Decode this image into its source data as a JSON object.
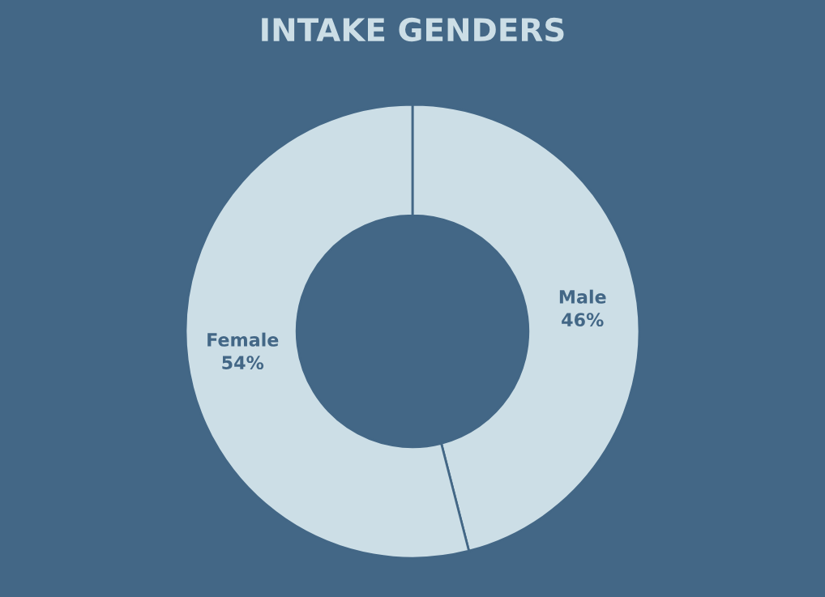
{
  "chart_data": {
    "type": "donut",
    "title": "INTAKE GENDERS",
    "categories": [
      "Male",
      "Female"
    ],
    "values": [
      46,
      54
    ],
    "colors": [
      "#ccdee6",
      "#ccdee6"
    ],
    "value_labels": [
      "46%",
      "54%"
    ],
    "legend": false
  }
}
